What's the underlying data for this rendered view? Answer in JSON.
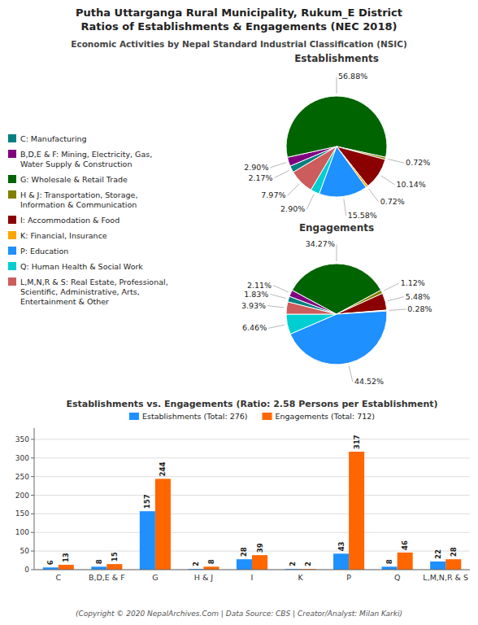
{
  "title": "Putha Uttarganga Rural Municipality, Rukum_E District\nRatios of Establishments & Engagements (NEC 2018)",
  "subtitle": "Economic Activities by Nepal Standard Industrial Classification (NSIC)",
  "annotations": [
    "(Copyright © 2020 NepalArchives.Com | Data Source: CBS | Creator/Analyst: Milan Karki)"
  ],
  "chart_data": [
    {
      "type": "pie",
      "title": "Establishments",
      "categories": [
        "C: Manufacturing",
        "B,D,E & F: Mining, Electricity, Gas,\nWater Supply & Construction",
        "G: Wholesale & Retail Trade",
        "H & J: Transportation, Storage,\nInformation & Communication",
        "I: Accommodation & Food",
        "K: Financial, Insurance",
        "P: Education",
        "Q: Human Health & Social Work",
        "L,M,N,R & S: Real Estate, Professional,\nScientific, Administrative, Arts,\nEntertainment & Other"
      ],
      "values": [
        2.17,
        2.9,
        56.88,
        0.72,
        10.14,
        0.72,
        15.58,
        2.9,
        7.97
      ],
      "value_labels": [
        "2.17%",
        "2.90%",
        "56.88%",
        "0.72%",
        "10.14%",
        "0.72%",
        "15.58%",
        "2.90%",
        "7.97%"
      ],
      "colors": [
        "#008080",
        "#800080",
        "#006400",
        "#808000",
        "#8B0000",
        "#FFA500",
        "#1E90FF",
        "#00CED1",
        "#CD5C5C"
      ],
      "data_labels": true,
      "legend": "left"
    },
    {
      "type": "pie",
      "title": "Engagements",
      "values": [
        1.83,
        2.11,
        34.27,
        1.12,
        5.48,
        0.28,
        44.52,
        6.46,
        3.93
      ],
      "value_labels": [
        "1.83%",
        "2.11%",
        "34.27%",
        "1.12%",
        "5.48%",
        "0.28%",
        "44.52%",
        "6.46%",
        "3.93%"
      ],
      "colors": [
        "#008080",
        "#800080",
        "#006400",
        "#808000",
        "#8B0000",
        "#FFA500",
        "#1E90FF",
        "#00CED1",
        "#CD5C5C"
      ],
      "data_labels": true
    },
    {
      "type": "bar",
      "title": "Establishments vs. Engagements (Ratio: 2.58 Persons per Establishment)",
      "categories": [
        "C",
        "B,D,E & F",
        "G",
        "H & J",
        "I",
        "K",
        "P",
        "Q",
        "L,M,N,R & S"
      ],
      "series": [
        {
          "name": "Establishments (Total: 276)",
          "color": "#1E90FF",
          "values": [
            6,
            8,
            157,
            2,
            28,
            2,
            43,
            8,
            22
          ]
        },
        {
          "name": "Engagements (Total: 712)",
          "color": "#FF6600",
          "values": [
            13,
            15,
            244,
            8,
            39,
            2,
            317,
            46,
            28
          ]
        }
      ],
      "ylim": [
        0,
        380.4
      ],
      "yticks": [
        0,
        50,
        100,
        150,
        200,
        250,
        300,
        350
      ],
      "grid": true,
      "data_labels": true,
      "legend": "upper center"
    }
  ]
}
